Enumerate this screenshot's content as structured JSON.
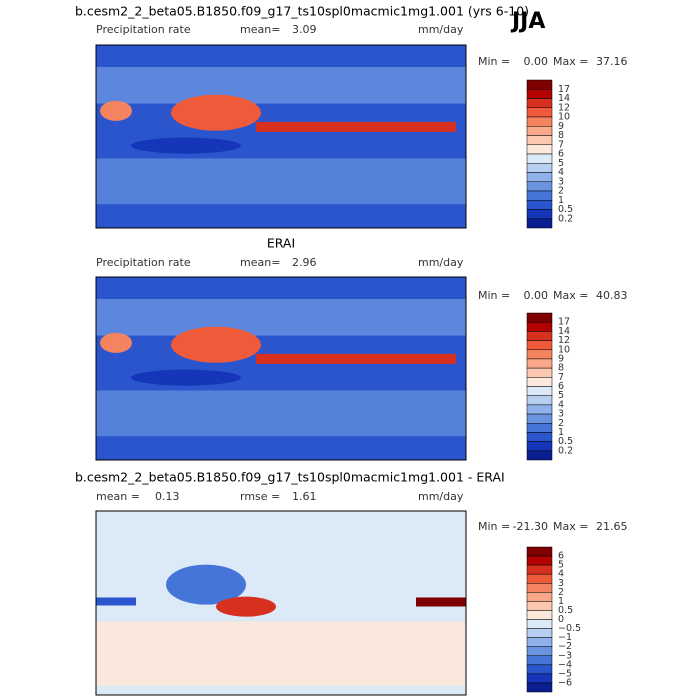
{
  "season": "JJA",
  "panels": [
    {
      "title": "b.cesm2_2_beta05.B1850.f09_g17_ts10spl0macmic1mg1.001 (yrs 6-10)",
      "field": "Precipitation rate",
      "mean_label": "mean=",
      "mean": "3.09",
      "units": "mm/day",
      "min_label": "Min =",
      "min": "0.00",
      "max_label": "Max =",
      "max": "37.16",
      "levels": [
        "17",
        "14",
        "12",
        "10",
        "9",
        "8",
        "7",
        "6",
        "5",
        "4",
        "3",
        "2",
        "1",
        "0.5",
        "0.2"
      ],
      "colors": [
        "#7f0000",
        "#b30000",
        "#d7301f",
        "#ef5b3a",
        "#f4845f",
        "#f9a98a",
        "#fcc8b0",
        "#fde8dc",
        "#dce9f7",
        "#b7cff0",
        "#8fb2ea",
        "#6a94e0",
        "#4575d8",
        "#2a55cc",
        "#1536b8",
        "#0a1e8f"
      ]
    },
    {
      "title": "ERAI",
      "field": "Precipitation rate",
      "mean_label": "mean=",
      "mean": "2.96",
      "units": "mm/day",
      "min_label": "Min =",
      "min": "0.00",
      "max_label": "Max =",
      "max": "40.83",
      "levels": [
        "17",
        "14",
        "12",
        "10",
        "9",
        "8",
        "7",
        "6",
        "5",
        "4",
        "3",
        "2",
        "1",
        "0.5",
        "0.2"
      ],
      "colors": [
        "#7f0000",
        "#b30000",
        "#d7301f",
        "#ef5b3a",
        "#f4845f",
        "#f9a98a",
        "#fcc8b0",
        "#fde8dc",
        "#dce9f7",
        "#b7cff0",
        "#8fb2ea",
        "#6a94e0",
        "#4575d8",
        "#2a55cc",
        "#1536b8",
        "#0a1e8f"
      ]
    },
    {
      "title": "b.cesm2_2_beta05.B1850.f09_g17_ts10spl0macmic1mg1.001 - ERAI",
      "mean_label": "mean =",
      "mean": "0.13",
      "rmse_label": "rmse =",
      "rmse": "1.61",
      "units": "mm/day",
      "min_label": "Min =",
      "min": "-21.30",
      "max_label": "Max =",
      "max": "21.65",
      "levels": [
        "6",
        "5",
        "4",
        "3",
        "2",
        "1",
        "0.5",
        "0",
        "−0.5",
        "−1",
        "−2",
        "−3",
        "−4",
        "−5",
        "−6"
      ],
      "colors": [
        "#7f0000",
        "#b30000",
        "#d7301f",
        "#ef5b3a",
        "#f4845f",
        "#f9a98a",
        "#fcc8b0",
        "#fde8dc",
        "#dce9f7",
        "#b7cff0",
        "#8fb2ea",
        "#6a94e0",
        "#4575d8",
        "#2a55cc",
        "#1536b8",
        "#0a1e8f"
      ]
    }
  ]
}
